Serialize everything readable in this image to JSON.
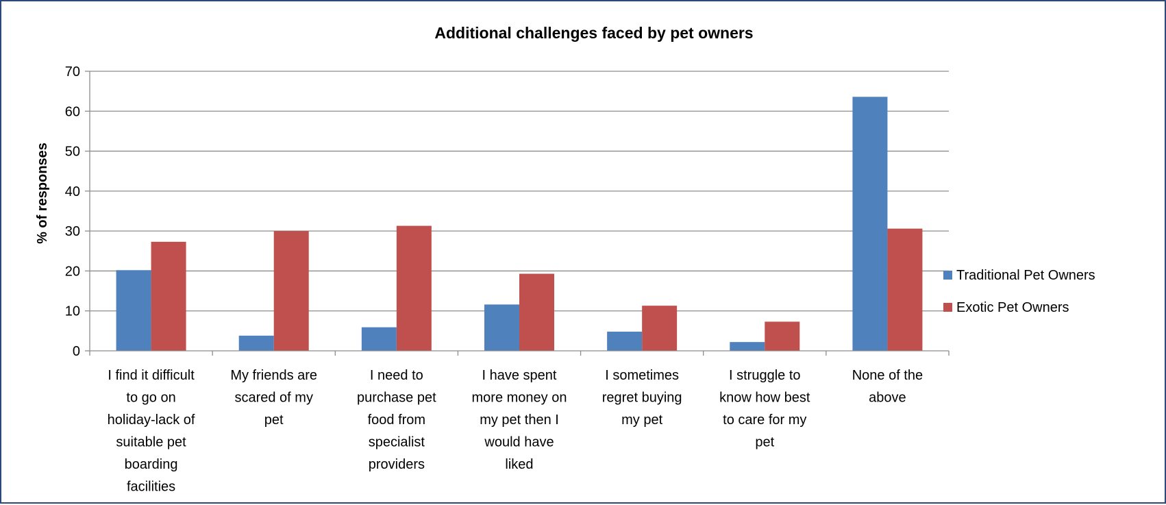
{
  "chart_data": {
    "type": "bar",
    "title": "Additional challenges faced by pet owners",
    "xlabel": "",
    "ylabel": "% of responses",
    "ylim": [
      0,
      70
    ],
    "yticks": [
      0,
      10,
      20,
      30,
      40,
      50,
      60,
      70
    ],
    "grid": true,
    "legend_position": "right",
    "categories": [
      [
        "I find it difficult",
        "to go on",
        "holiday-lack of",
        "suitable pet",
        "boarding",
        "facilities"
      ],
      [
        "My friends are",
        "scared of my",
        "pet"
      ],
      [
        "I need to",
        "purchase pet",
        "food from",
        "specialist",
        "providers"
      ],
      [
        "I have spent",
        "more money on",
        "my pet then I",
        "would have",
        "liked"
      ],
      [
        "I sometimes",
        "regret buying",
        "my pet"
      ],
      [
        "I struggle to",
        "know how best",
        "to care for my",
        "pet"
      ],
      [
        "None of the",
        "above"
      ]
    ],
    "series": [
      {
        "name": "Traditional Pet Owners",
        "color": "#4f81bd",
        "values": [
          20.2,
          3.8,
          5.9,
          11.6,
          4.8,
          2.2,
          63.6
        ]
      },
      {
        "name": "Exotic Pet Owners",
        "color": "#c0504d",
        "values": [
          27.3,
          30.0,
          31.3,
          19.3,
          11.3,
          7.3,
          30.6
        ]
      }
    ]
  }
}
